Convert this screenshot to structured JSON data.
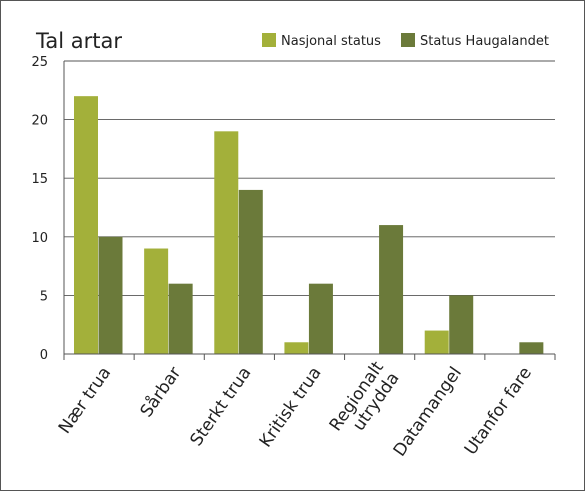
{
  "chart_data": {
    "type": "bar",
    "title": "Tal artar",
    "categories": [
      "Nær trua",
      "Sårbar",
      "Sterkt trua",
      "Kritisk trua",
      "Regionalt utrydda",
      "Datamangel",
      "Utanfor fare"
    ],
    "category_lines": [
      [
        "Nær trua"
      ],
      [
        "Sårbar"
      ],
      [
        "Sterkt trua"
      ],
      [
        "Kritisk trua"
      ],
      [
        "Regionalt",
        "utrydda"
      ],
      [
        "Datamangel"
      ],
      [
        "Utanfor fare"
      ]
    ],
    "series": [
      {
        "name": "Nasjonal status",
        "values": [
          22,
          9,
          19,
          1,
          0,
          2,
          0
        ],
        "color": "#a3b03a"
      },
      {
        "name": "Status Haugalandet",
        "values": [
          10,
          6,
          14,
          6,
          11,
          5,
          1
        ],
        "color": "#6b7a3a"
      }
    ],
    "ylim": [
      0,
      25
    ],
    "yticks": [
      0,
      5,
      10,
      15,
      20,
      25
    ],
    "grid": true,
    "legend_position": "top-right"
  }
}
